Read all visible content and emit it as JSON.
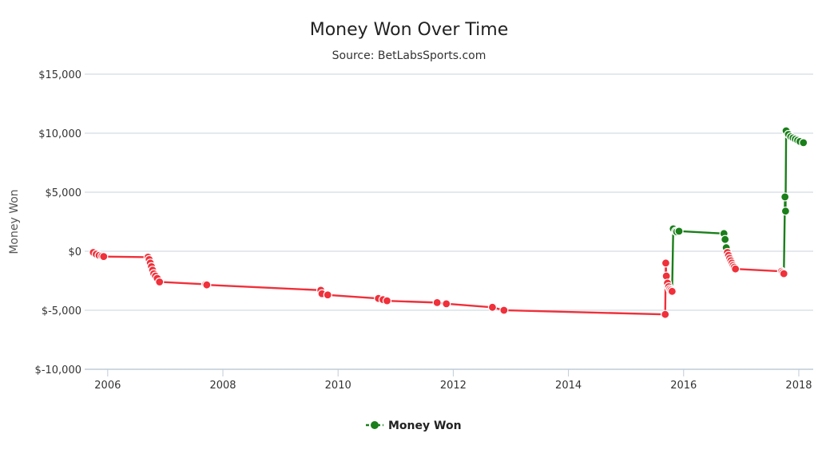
{
  "chart_data": {
    "type": "line",
    "title": "Money Won Over Time",
    "subtitle": "Source: BetLabsSports.com",
    "xlabel": "",
    "ylabel": "Money Won",
    "xlim": [
      2005.6,
      2018.25
    ],
    "ylim": [
      -10000,
      15000
    ],
    "x_ticks": [
      {
        "value": 2006,
        "label": "2006"
      },
      {
        "value": 2008,
        "label": "2008"
      },
      {
        "value": 2010,
        "label": "2010"
      },
      {
        "value": 2012,
        "label": "2012"
      },
      {
        "value": 2014,
        "label": "2014"
      },
      {
        "value": 2016,
        "label": "2016"
      },
      {
        "value": 2018,
        "label": "2018"
      }
    ],
    "y_ticks": [
      {
        "value": 15000,
        "label": "$15,000"
      },
      {
        "value": 10000,
        "label": "$10,000"
      },
      {
        "value": 5000,
        "label": "$5,000"
      },
      {
        "value": 0,
        "label": "$0"
      },
      {
        "value": -5000,
        "label": "$-5,000"
      },
      {
        "value": -10000,
        "label": "$-10,000"
      }
    ],
    "grid": true,
    "legend_position": "bottom-center",
    "colors": {
      "positive": "#1a7f1a",
      "negative": "#f0303a",
      "grid": "#c9d3dd",
      "axis": "#c0cbd6"
    },
    "series": [
      {
        "name": "Money Won",
        "x": [
          2005.75,
          2005.8,
          2005.85,
          2005.9,
          2005.93,
          2006.7,
          2006.72,
          2006.74,
          2006.76,
          2006.78,
          2006.8,
          2006.83,
          2006.86,
          2006.9,
          2007.7,
          2007.72,
          2009.7,
          2009.72,
          2009.82,
          2010.7,
          2010.78,
          2010.85,
          2011.72,
          2011.88,
          2012.68,
          2012.88,
          2015.68,
          2015.69,
          2015.7,
          2015.72,
          2015.74,
          2015.76,
          2015.78,
          2015.8,
          2015.82,
          2015.86,
          2015.88,
          2015.92,
          2016.7,
          2016.72,
          2016.74,
          2016.76,
          2016.78,
          2016.8,
          2016.82,
          2016.84,
          2016.86,
          2016.88,
          2016.9,
          2017.7,
          2017.72,
          2017.74,
          2017.76,
          2017.77,
          2017.78,
          2017.82,
          2017.86,
          2017.9,
          2017.94,
          2017.98,
          2018.02,
          2018.08
        ],
        "y": [
          -100,
          -250,
          -350,
          -400,
          -450,
          -500,
          -700,
          -1000,
          -1300,
          -1600,
          -1900,
          -2100,
          -2300,
          -2600,
          -2800,
          -2850,
          -3300,
          -3600,
          -3700,
          -4000,
          -4100,
          -4200,
          -4350,
          -4450,
          -4750,
          -5000,
          -5350,
          -1000,
          -2100,
          -2700,
          -3000,
          -3200,
          -3300,
          -3400,
          1900,
          1700,
          1650,
          1700,
          1500,
          1000,
          300,
          -100,
          -350,
          -600,
          -800,
          -1000,
          -1200,
          -1350,
          -1500,
          -1700,
          -1800,
          -1900,
          4600,
          3400,
          10200,
          9900,
          9700,
          9600,
          9500,
          9400,
          9300,
          9200
        ]
      }
    ]
  },
  "legend": {
    "label": "Money Won"
  }
}
